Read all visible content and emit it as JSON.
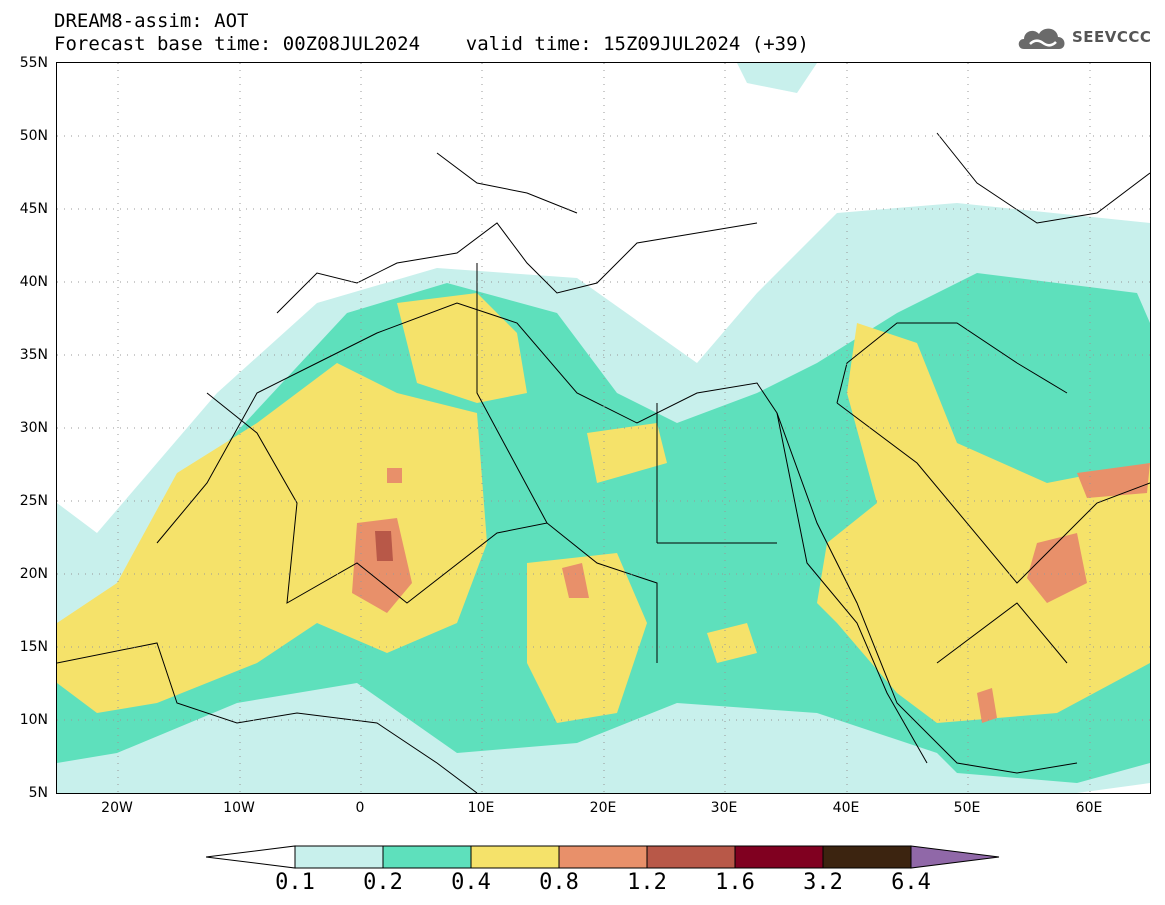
{
  "title": {
    "line1": "DREAM8-assim: AOT",
    "line2": "Forecast base time: 00Z08JUL2024    valid time: 15Z09JUL2024 (+39)"
  },
  "logo": {
    "text": "SEEVCCC",
    "icon": "cloud-icon"
  },
  "map": {
    "field": "Aerosol optical thickness",
    "lat_range": [
      5,
      55
    ],
    "lon_range": [
      -25,
      65
    ],
    "lat_labels": [
      "55N",
      "50N",
      "45N",
      "40N",
      "35N",
      "30N",
      "25N",
      "20N",
      "15N",
      "10N",
      "5N"
    ],
    "lon_labels": [
      "20W",
      "10W",
      "0",
      "10E",
      "20E",
      "30E",
      "40E",
      "50E",
      "60E"
    ],
    "grid": "dotted"
  },
  "colorbar": {
    "levels": [
      "0.1",
      "0.2",
      "0.4",
      "0.8",
      "1.2",
      "1.6",
      "3.2",
      "6.4"
    ],
    "colors": [
      "#c8f0ec",
      "#5ee0bc",
      "#f5e26a",
      "#e8906a",
      "#b85848",
      "#800020",
      "#3c2410",
      "#9068a8"
    ]
  }
}
